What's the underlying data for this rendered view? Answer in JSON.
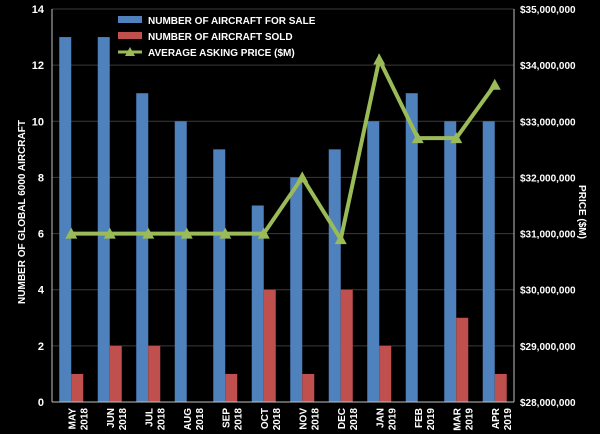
{
  "chart_data": {
    "type": "bar",
    "categories": [
      [
        "MAY",
        "2018"
      ],
      [
        "JUN",
        "2018"
      ],
      [
        "JUL",
        "2018"
      ],
      [
        "AUG",
        "2018"
      ],
      [
        "SEP",
        "2018"
      ],
      [
        "OCT",
        "2018"
      ],
      [
        "NOV",
        "2018"
      ],
      [
        "DEC",
        "2018"
      ],
      [
        "JAN",
        "2019"
      ],
      [
        "FEB",
        "2019"
      ],
      [
        "MAR",
        "2019"
      ],
      [
        "APR",
        "2019"
      ]
    ],
    "series": [
      {
        "name": "NUMBER OF AIRCRAFT FOR SALE",
        "kind": "bar",
        "axis": "left",
        "color": "#4f81bd",
        "values": [
          13,
          13,
          11,
          10,
          9,
          7,
          8,
          9,
          10,
          11,
          10,
          10
        ]
      },
      {
        "name": "NUMBER OF AIRCRAFT SOLD",
        "kind": "bar",
        "axis": "left",
        "color": "#c0504d",
        "values": [
          1,
          2,
          2,
          0,
          1,
          4,
          1,
          4,
          2,
          0,
          3,
          1
        ]
      },
      {
        "name": "AVERAGE ASKING PRICE ($M)",
        "kind": "line",
        "axis": "right",
        "color": "#9bbb59",
        "values": [
          31000000,
          31000000,
          31000000,
          31000000,
          31000000,
          31000000,
          32000000,
          30900000,
          34100000,
          32700000,
          32700000,
          33650000
        ]
      }
    ],
    "ylabel": "NUMBER OF GLOBAL 6000 AIRCRAFT",
    "y2label": "PRICE ($M)",
    "ylim": [
      0,
      14
    ],
    "y2lim": [
      28000000,
      35000000
    ],
    "yticks": [
      "0",
      "2",
      "4",
      "6",
      "8",
      "10",
      "12",
      "14"
    ],
    "y2ticks": [
      "$28,000,000",
      "$29,000,000",
      "$30,000,000",
      "$31,000,000",
      "$32,000,000",
      "$33,000,000",
      "$34,000,000",
      "$35,000,000"
    ],
    "grid": true,
    "legend_position": "top-left",
    "background": "#000000",
    "text_color": "#ffffff"
  }
}
